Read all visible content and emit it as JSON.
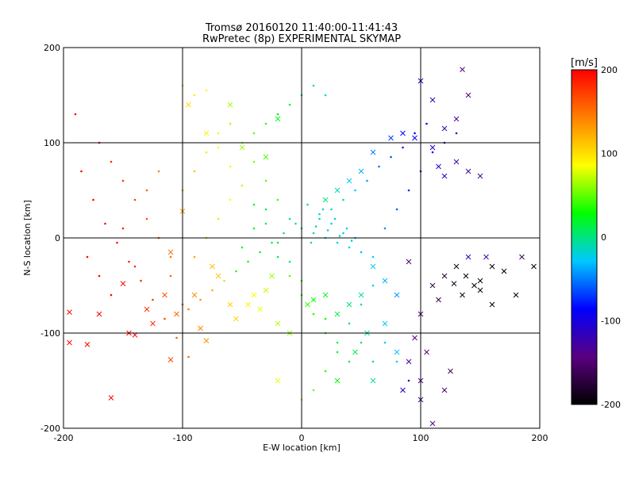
{
  "chart_data": {
    "type": "scatter",
    "title_line1": "Tromsø 20160120 11:40:00-11:41:43",
    "title_line2": "RwPretec (8p) EXPERIMENTAL SKYMAP",
    "xlabel": "E-W location [km]",
    "ylabel": "N-S location [km]",
    "xlim": [
      -200,
      200
    ],
    "ylim": [
      -200,
      200
    ],
    "xticks": [
      -200,
      -100,
      0,
      100,
      200
    ],
    "yticks": [
      -200,
      -100,
      0,
      100,
      200
    ],
    "grid": true,
    "colorbar": {
      "label": "[m/s]",
      "range": [
        -200,
        200
      ],
      "ticks": [
        200,
        100,
        0,
        -100,
        -200
      ],
      "colors": [
        "#000000",
        "#5a0080",
        "#0000ff",
        "#00c8ff",
        "#00ff00",
        "#ffff00",
        "#ff8000",
        "#ff0000"
      ]
    },
    "series": [
      {
        "marker": "x",
        "points": [
          [
            -195,
            -78
          ],
          [
            -180,
            -112
          ],
          [
            -160,
            -168
          ],
          [
            -150,
            -48
          ],
          [
            -145,
            -100
          ],
          [
            -140,
            -102
          ],
          [
            -125,
            -90
          ],
          [
            -110,
            -128
          ],
          [
            -105,
            -80
          ],
          [
            -110,
            -15
          ],
          [
            -100,
            28
          ],
          [
            -90,
            -60
          ],
          [
            -85,
            -95
          ],
          [
            -80,
            -108
          ],
          [
            -75,
            -30
          ],
          [
            -70,
            -40
          ],
          [
            -60,
            -70
          ],
          [
            -55,
            -85
          ],
          [
            -45,
            -70
          ],
          [
            -40,
            -60
          ],
          [
            -35,
            -75
          ],
          [
            -30,
            -55
          ],
          [
            -25,
            -40
          ],
          [
            -20,
            -90
          ],
          [
            -10,
            -100
          ],
          [
            5,
            -70
          ],
          [
            10,
            -65
          ],
          [
            20,
            -60
          ],
          [
            30,
            -80
          ],
          [
            40,
            -70
          ],
          [
            50,
            -60
          ],
          [
            60,
            -30
          ],
          [
            70,
            -45
          ],
          [
            80,
            -60
          ],
          [
            90,
            -25
          ],
          [
            100,
            -80
          ],
          [
            110,
            -50
          ],
          [
            120,
            -40
          ],
          [
            130,
            -30
          ],
          [
            140,
            -20
          ],
          [
            150,
            -45
          ],
          [
            160,
            -30
          ],
          [
            170,
            -35
          ],
          [
            180,
            -60
          ],
          [
            185,
            -20
          ],
          [
            195,
            -30
          ],
          [
            100,
            -170
          ],
          [
            110,
            -195
          ],
          [
            120,
            -160
          ],
          [
            90,
            -130
          ],
          [
            80,
            -120
          ],
          [
            60,
            -150
          ],
          [
            30,
            -150
          ],
          [
            -20,
            -150
          ],
          [
            45,
            -120
          ],
          [
            55,
            -100
          ],
          [
            70,
            -90
          ],
          [
            95,
            -105
          ],
          [
            105,
            -120
          ],
          [
            125,
            -140
          ],
          [
            138,
            -40
          ],
          [
            145,
            -50
          ],
          [
            150,
            -55
          ],
          [
            155,
            -20
          ],
          [
            160,
            -70
          ],
          [
            135,
            -60
          ],
          [
            128,
            -48
          ],
          [
            115,
            -65
          ],
          [
            100,
            -150
          ],
          [
            85,
            -160
          ],
          [
            115,
            75
          ],
          [
            120,
            65
          ],
          [
            130,
            80
          ],
          [
            140,
            70
          ],
          [
            150,
            65
          ],
          [
            110,
            95
          ],
          [
            95,
            105
          ],
          [
            85,
            110
          ],
          [
            75,
            105
          ],
          [
            60,
            90
          ],
          [
            50,
            70
          ],
          [
            40,
            60
          ],
          [
            30,
            50
          ],
          [
            20,
            40
          ],
          [
            -30,
            85
          ],
          [
            -50,
            95
          ],
          [
            -80,
            110
          ],
          [
            -95,
            140
          ],
          [
            -60,
            140
          ],
          [
            -20,
            125
          ],
          [
            120,
            115
          ],
          [
            130,
            125
          ],
          [
            140,
            150
          ],
          [
            135,
            177
          ],
          [
            110,
            145
          ],
          [
            100,
            165
          ],
          [
            -195,
            -110
          ],
          [
            -170,
            -80
          ],
          [
            -130,
            -75
          ],
          [
            -115,
            -60
          ]
        ]
      },
      {
        "marker": "dot",
        "points": [
          [
            -190,
            130
          ],
          [
            -170,
            100
          ],
          [
            -160,
            80
          ],
          [
            -150,
            60
          ],
          [
            -140,
            40
          ],
          [
            -130,
            20
          ],
          [
            -120,
            0
          ],
          [
            -110,
            -20
          ],
          [
            -100,
            50
          ],
          [
            -90,
            70
          ],
          [
            -80,
            90
          ],
          [
            -70,
            110
          ],
          [
            -60,
            120
          ],
          [
            -50,
            100
          ],
          [
            -40,
            80
          ],
          [
            -30,
            60
          ],
          [
            -20,
            40
          ],
          [
            -10,
            20
          ],
          [
            0,
            10
          ],
          [
            10,
            5
          ],
          [
            20,
            0
          ],
          [
            30,
            -5
          ],
          [
            40,
            -10
          ],
          [
            50,
            -15
          ],
          [
            60,
            -20
          ],
          [
            70,
            10
          ],
          [
            80,
            30
          ],
          [
            90,
            50
          ],
          [
            100,
            70
          ],
          [
            110,
            90
          ],
          [
            120,
            100
          ],
          [
            130,
            110
          ],
          [
            -180,
            -20
          ],
          [
            -170,
            -40
          ],
          [
            -160,
            -60
          ],
          [
            -150,
            10
          ],
          [
            -140,
            -30
          ],
          [
            -130,
            50
          ],
          [
            -120,
            70
          ],
          [
            -110,
            -40
          ],
          [
            -100,
            -70
          ],
          [
            -90,
            -20
          ],
          [
            -80,
            0
          ],
          [
            -70,
            20
          ],
          [
            -60,
            40
          ],
          [
            -50,
            -10
          ],
          [
            -40,
            10
          ],
          [
            -30,
            30
          ],
          [
            -20,
            -20
          ],
          [
            -10,
            -40
          ],
          [
            0,
            -60
          ],
          [
            10,
            -80
          ],
          [
            20,
            -100
          ],
          [
            30,
            -110
          ],
          [
            40,
            -90
          ],
          [
            50,
            -70
          ],
          [
            60,
            -50
          ],
          [
            5,
            35
          ],
          [
            15,
            25
          ],
          [
            25,
            15
          ],
          [
            35,
            5
          ],
          [
            45,
            0
          ],
          [
            -5,
            15
          ],
          [
            12,
            12
          ],
          [
            22,
            8
          ],
          [
            32,
            2
          ],
          [
            42,
            -3
          ],
          [
            18,
            30
          ],
          [
            28,
            20
          ],
          [
            38,
            10
          ],
          [
            8,
            -5
          ],
          [
            -15,
            5
          ],
          [
            -25,
            -5
          ],
          [
            -35,
            -15
          ],
          [
            -45,
            -25
          ],
          [
            -55,
            -35
          ],
          [
            -65,
            -45
          ],
          [
            -75,
            -55
          ],
          [
            -85,
            -65
          ],
          [
            -95,
            -75
          ],
          [
            65,
            75
          ],
          [
            75,
            85
          ],
          [
            85,
            95
          ],
          [
            95,
            110
          ],
          [
            105,
            120
          ],
          [
            55,
            60
          ],
          [
            45,
            50
          ],
          [
            35,
            40
          ],
          [
            25,
            30
          ],
          [
            15,
            20
          ],
          [
            -185,
            70
          ],
          [
            -175,
            40
          ],
          [
            -165,
            15
          ],
          [
            -155,
            -5
          ],
          [
            -145,
            -25
          ],
          [
            -135,
            -45
          ],
          [
            -125,
            -65
          ],
          [
            -115,
            -85
          ],
          [
            -105,
            -105
          ],
          [
            -95,
            -125
          ],
          [
            0,
            150
          ],
          [
            -10,
            140
          ],
          [
            -20,
            130
          ],
          [
            -30,
            120
          ],
          [
            -40,
            110
          ],
          [
            10,
            160
          ],
          [
            20,
            150
          ],
          [
            -100,
            160
          ],
          [
            -90,
            150
          ],
          [
            -80,
            155
          ],
          [
            -70,
            95
          ],
          [
            -60,
            75
          ],
          [
            -50,
            55
          ],
          [
            -40,
            35
          ],
          [
            -30,
            15
          ],
          [
            -20,
            -5
          ],
          [
            -10,
            -25
          ],
          [
            0,
            -45
          ],
          [
            10,
            -65
          ],
          [
            20,
            -85
          ],
          [
            70,
            -110
          ],
          [
            80,
            -130
          ],
          [
            90,
            -150
          ],
          [
            60,
            -130
          ],
          [
            50,
            -110
          ],
          [
            40,
            -130
          ],
          [
            30,
            -120
          ],
          [
            20,
            -140
          ],
          [
            10,
            -160
          ],
          [
            0,
            -170
          ]
        ]
      }
    ]
  }
}
